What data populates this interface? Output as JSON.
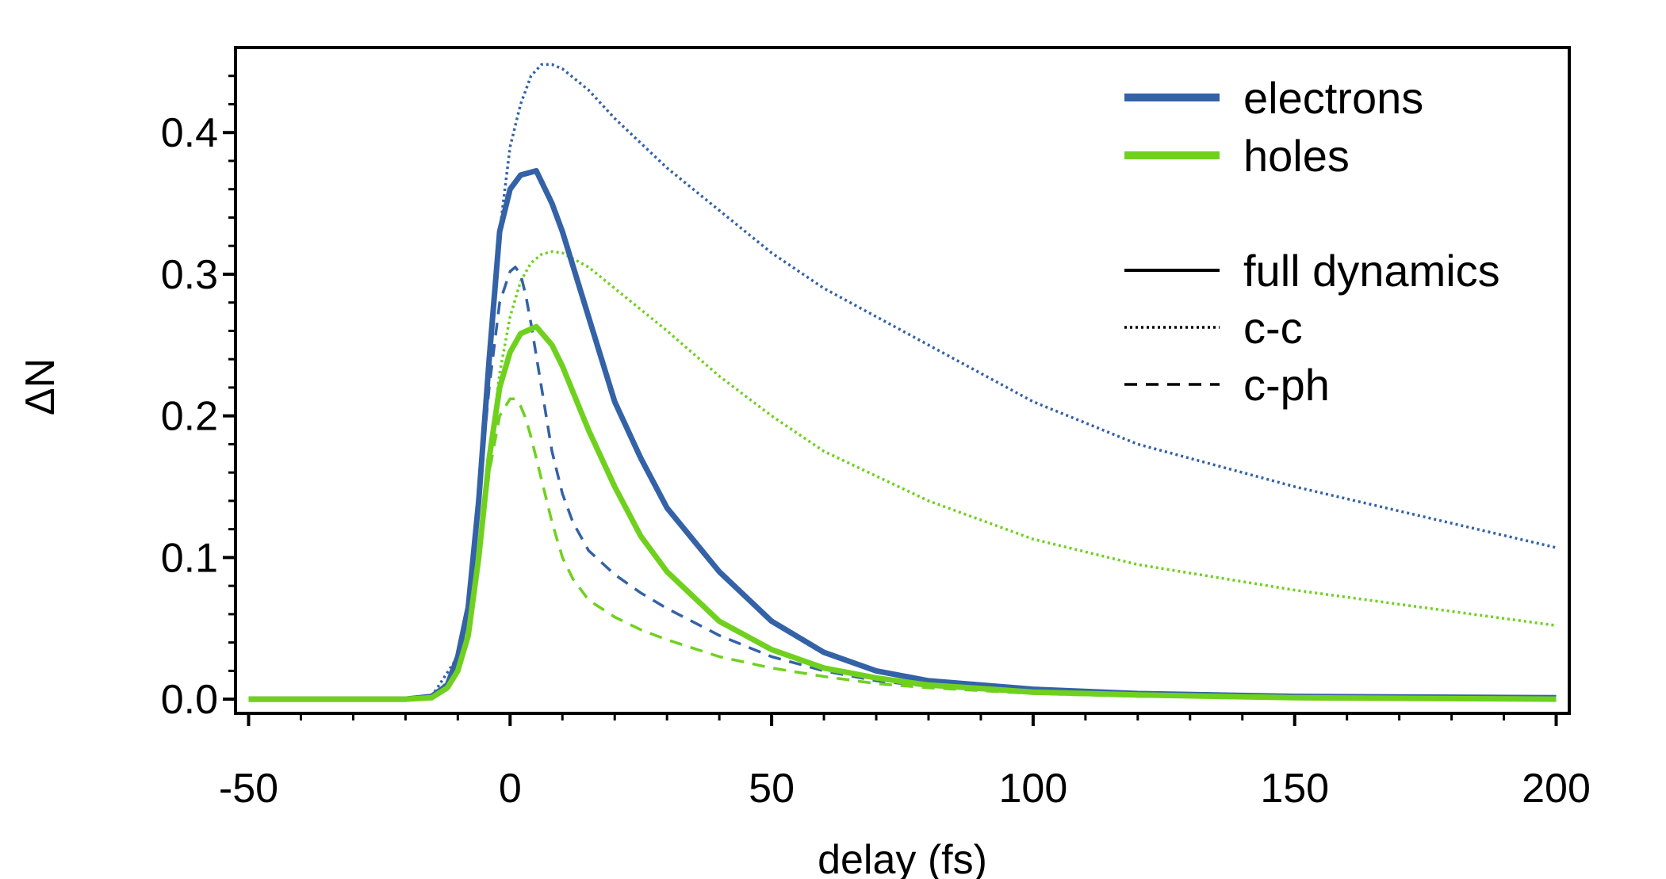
{
  "chart_data": {
    "type": "line",
    "xlabel": "delay (fs)",
    "ylabel": "ΔN",
    "xlim": [
      -52.5,
      202.5
    ],
    "ylim": [
      -0.01,
      0.46
    ],
    "x_ticks": [
      "-50",
      "0",
      "50",
      "100",
      "150",
      "200"
    ],
    "y_ticks": [
      "0.0",
      "0.1",
      "0.2",
      "0.3",
      "0.4"
    ],
    "grid": false,
    "legend_position": "top-right",
    "legend": {
      "species": [
        {
          "label": "electrons",
          "color": "#3462a7"
        },
        {
          "label": "holes",
          "color": "#6fd11e"
        }
      ],
      "styles": [
        {
          "label": "full dynamics",
          "dash": "solid"
        },
        {
          "label": "c-c",
          "dash": "dotted"
        },
        {
          "label": "c-ph",
          "dash": "dashed"
        }
      ]
    },
    "series": [
      {
        "name": "electrons full dynamics",
        "species": "electrons",
        "style": "full dynamics",
        "color": "#3462a7",
        "x": [
          -50,
          -20,
          -15,
          -12,
          -10,
          -8,
          -6,
          -4,
          -2,
          0,
          2,
          5,
          8,
          10,
          15,
          20,
          25,
          30,
          40,
          50,
          60,
          70,
          80,
          100,
          120,
          150,
          200
        ],
        "y": [
          0,
          0,
          0.002,
          0.01,
          0.03,
          0.065,
          0.14,
          0.24,
          0.33,
          0.36,
          0.37,
          0.373,
          0.35,
          0.33,
          0.27,
          0.21,
          0.17,
          0.135,
          0.09,
          0.055,
          0.033,
          0.02,
          0.013,
          0.007,
          0.004,
          0.002,
          0.001
        ]
      },
      {
        "name": "holes full dynamics",
        "species": "holes",
        "style": "full dynamics",
        "color": "#6fd11e",
        "x": [
          -50,
          -20,
          -15,
          -12,
          -10,
          -8,
          -6,
          -4,
          -2,
          0,
          2,
          5,
          8,
          10,
          15,
          20,
          25,
          30,
          40,
          50,
          60,
          70,
          80,
          100,
          120,
          150,
          200
        ],
        "y": [
          0,
          0,
          0.001,
          0.008,
          0.02,
          0.045,
          0.1,
          0.17,
          0.22,
          0.245,
          0.258,
          0.263,
          0.25,
          0.235,
          0.19,
          0.15,
          0.115,
          0.09,
          0.055,
          0.035,
          0.022,
          0.015,
          0.01,
          0.005,
          0.003,
          0.001,
          0
        ]
      },
      {
        "name": "electrons c-c",
        "species": "electrons",
        "style": "c-c",
        "color": "#3462a7",
        "x": [
          -50,
          -20,
          -15,
          -10,
          -8,
          -6,
          -4,
          -2,
          0,
          2,
          4,
          6,
          8,
          10,
          15,
          20,
          30,
          40,
          50,
          60,
          80,
          100,
          120,
          150,
          200
        ],
        "y": [
          0,
          0,
          0.002,
          0.03,
          0.065,
          0.14,
          0.24,
          0.33,
          0.39,
          0.42,
          0.44,
          0.448,
          0.448,
          0.445,
          0.43,
          0.41,
          0.375,
          0.345,
          0.315,
          0.29,
          0.25,
          0.21,
          0.18,
          0.15,
          0.107
        ]
      },
      {
        "name": "holes c-c",
        "species": "holes",
        "style": "c-c",
        "color": "#6fd11e",
        "x": [
          -50,
          -20,
          -15,
          -10,
          -8,
          -6,
          -4,
          -2,
          0,
          2,
          4,
          6,
          8,
          10,
          15,
          20,
          30,
          40,
          50,
          60,
          80,
          100,
          120,
          150,
          200
        ],
        "y": [
          0,
          0,
          0.001,
          0.02,
          0.045,
          0.1,
          0.17,
          0.23,
          0.27,
          0.295,
          0.308,
          0.314,
          0.316,
          0.315,
          0.305,
          0.29,
          0.26,
          0.228,
          0.2,
          0.175,
          0.14,
          0.113,
          0.095,
          0.077,
          0.052
        ]
      },
      {
        "name": "electrons c-ph",
        "species": "electrons",
        "style": "c-ph",
        "color": "#3462a7",
        "x": [
          -50,
          -20,
          -15,
          -12,
          -10,
          -8,
          -6,
          -4,
          -2,
          0,
          1,
          2,
          3,
          4,
          6,
          8,
          10,
          12,
          15,
          20,
          25,
          30,
          40,
          50,
          60,
          70,
          80,
          100,
          120,
          150,
          200
        ],
        "y": [
          0,
          0,
          0.002,
          0.01,
          0.03,
          0.065,
          0.14,
          0.22,
          0.28,
          0.302,
          0.305,
          0.3,
          0.285,
          0.265,
          0.22,
          0.175,
          0.145,
          0.125,
          0.105,
          0.088,
          0.075,
          0.064,
          0.045,
          0.03,
          0.02,
          0.013,
          0.009,
          0.005,
          0.003,
          0.001,
          0
        ]
      },
      {
        "name": "holes c-ph",
        "species": "holes",
        "style": "c-ph",
        "color": "#6fd11e",
        "x": [
          -50,
          -20,
          -15,
          -12,
          -10,
          -8,
          -6,
          -4,
          -2,
          0,
          1,
          2,
          3,
          4,
          6,
          8,
          10,
          12,
          15,
          20,
          25,
          30,
          40,
          50,
          60,
          70,
          80,
          100,
          120,
          150,
          200
        ],
        "y": [
          0,
          0,
          0.001,
          0.008,
          0.02,
          0.045,
          0.1,
          0.16,
          0.2,
          0.212,
          0.212,
          0.207,
          0.198,
          0.185,
          0.155,
          0.125,
          0.1,
          0.085,
          0.07,
          0.058,
          0.049,
          0.042,
          0.03,
          0.022,
          0.016,
          0.011,
          0.008,
          0.004,
          0.002,
          0.001,
          0
        ]
      }
    ]
  }
}
